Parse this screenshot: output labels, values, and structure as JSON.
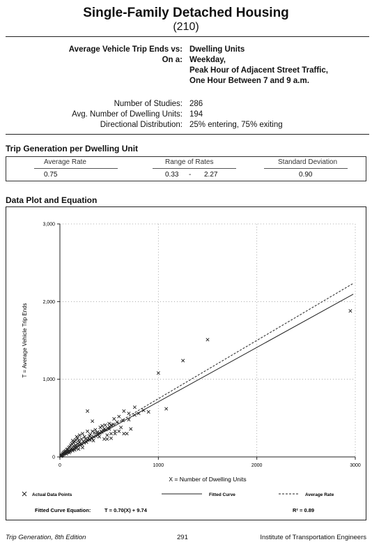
{
  "header": {
    "title": "Single-Family Detached Housing",
    "code": "(210)"
  },
  "summary": {
    "vs_label": "Average Vehicle Trip Ends vs:",
    "vs_value": "Dwelling Units",
    "on_label": "On a:",
    "on_lines": [
      "Weekday,",
      "Peak Hour of Adjacent Street Traffic,",
      "One Hour Between 7 and 9 a.m."
    ],
    "studies_label": "Number of Studies:",
    "studies_value": "286",
    "avg_units_label": "Avg. Number of Dwelling Units:",
    "avg_units_value": "194",
    "dist_label": "Directional Distribution:",
    "dist_value": "25% entering, 75% exiting"
  },
  "trip_generation": {
    "section_title": "Trip Generation per Dwelling Unit",
    "headers": [
      "Average Rate",
      "Range of Rates",
      "Standard Deviation"
    ],
    "average_rate": "0.75",
    "range_low": "0.33",
    "range_sep": "-",
    "range_high": "2.27",
    "std_dev": "0.90"
  },
  "plot_section_title": "Data Plot and Equation",
  "chart_data": {
    "type": "scatter",
    "xlabel": "X = Number of Dwelling Units",
    "ylabel": "T = Average Vehicle Trip Ends",
    "xlim": [
      0,
      3000
    ],
    "ylim": [
      0,
      3000
    ],
    "x_ticks": [
      0,
      1000,
      2000,
      3000
    ],
    "x_tick_labels": [
      "0",
      "1000",
      "2000",
      "3000"
    ],
    "y_ticks": [
      0,
      1000,
      2000,
      3000
    ],
    "y_tick_labels": [
      "0",
      "1,000",
      "2,000",
      "3,000"
    ],
    "grid": true,
    "grid_style": "dotted",
    "series": [
      {
        "name": "Actual Data Points",
        "marker": "x",
        "points": [
          [
            2950,
            1880
          ],
          [
            1500,
            1510
          ],
          [
            1250,
            1240
          ],
          [
            1000,
            1080
          ],
          [
            1080,
            620
          ],
          [
            760,
            640
          ],
          [
            700,
            560
          ],
          [
            650,
            590
          ],
          [
            800,
            560
          ],
          [
            850,
            600
          ],
          [
            600,
            520
          ],
          [
            550,
            490
          ],
          [
            500,
            430
          ],
          [
            450,
            360
          ],
          [
            420,
            330
          ],
          [
            380,
            290
          ],
          [
            350,
            310
          ],
          [
            300,
            270
          ],
          [
            280,
            330
          ],
          [
            250,
            260
          ],
          [
            220,
            230
          ],
          [
            200,
            190
          ],
          [
            180,
            170
          ],
          [
            160,
            150
          ],
          [
            150,
            120
          ],
          [
            140,
            140
          ],
          [
            120,
            110
          ],
          [
            110,
            90
          ],
          [
            100,
            80
          ],
          [
            90,
            75
          ],
          [
            80,
            70
          ],
          [
            70,
            60
          ],
          [
            60,
            50
          ],
          [
            50,
            45
          ],
          [
            40,
            35
          ],
          [
            30,
            28
          ],
          [
            25,
            20
          ],
          [
            20,
            15
          ],
          [
            15,
            12
          ],
          [
            10,
            9
          ],
          [
            130,
            210
          ],
          [
            170,
            260
          ],
          [
            200,
            280
          ],
          [
            230,
            300
          ],
          [
            260,
            230
          ],
          [
            300,
            220
          ],
          [
            320,
            250
          ],
          [
            340,
            210
          ],
          [
            400,
            260
          ],
          [
            450,
            230
          ],
          [
            480,
            280
          ],
          [
            520,
            300
          ],
          [
            560,
            330
          ],
          [
            620,
            380
          ],
          [
            680,
            300
          ],
          [
            720,
            360
          ],
          [
            110,
            150
          ],
          [
            90,
            120
          ],
          [
            70,
            95
          ],
          [
            60,
            80
          ],
          [
            45,
            65
          ],
          [
            35,
            55
          ],
          [
            150,
            200
          ],
          [
            190,
            210
          ],
          [
            210,
            170
          ],
          [
            240,
            200
          ],
          [
            270,
            190
          ],
          [
            290,
            240
          ],
          [
            310,
            290
          ],
          [
            330,
            330
          ],
          [
            360,
            350
          ],
          [
            380,
            320
          ],
          [
            410,
            380
          ],
          [
            430,
            400
          ],
          [
            460,
            410
          ],
          [
            500,
            360
          ],
          [
            540,
            420
          ],
          [
            580,
            450
          ],
          [
            640,
            470
          ],
          [
            700,
            480
          ],
          [
            120,
            170
          ],
          [
            140,
            180
          ],
          [
            160,
            220
          ],
          [
            180,
            240
          ],
          [
            100,
            130
          ],
          [
            80,
            100
          ],
          [
            55,
            70
          ],
          [
            40,
            50
          ],
          [
            28,
            40
          ],
          [
            18,
            25
          ],
          [
            280,
            590
          ],
          [
            330,
            460
          ],
          [
            480,
            230
          ],
          [
            230,
            120
          ],
          [
            190,
            100
          ],
          [
            760,
            540
          ],
          [
            900,
            580
          ],
          [
            650,
            300
          ],
          [
            600,
            330
          ],
          [
            560,
            300
          ],
          [
            520,
            240
          ],
          [
            150,
            90
          ],
          [
            130,
            80
          ],
          [
            170,
            130
          ],
          [
            95,
            55
          ],
          [
            65,
            40
          ],
          [
            75,
            58
          ],
          [
            85,
            62
          ],
          [
            105,
            70
          ],
          [
            125,
            95
          ],
          [
            145,
            105
          ],
          [
            165,
            110
          ],
          [
            185,
            140
          ],
          [
            205,
            150
          ],
          [
            225,
            160
          ],
          [
            245,
            180
          ],
          [
            265,
            200
          ],
          [
            285,
            215
          ],
          [
            305,
            225
          ],
          [
            325,
            240
          ],
          [
            345,
            260
          ],
          [
            365,
            270
          ],
          [
            385,
            300
          ],
          [
            405,
            310
          ],
          [
            425,
            320
          ],
          [
            445,
            340
          ],
          [
            465,
            350
          ],
          [
            485,
            370
          ],
          [
            505,
            390
          ],
          [
            525,
            410
          ]
        ]
      },
      {
        "name": "Fitted Curve",
        "style": "solid",
        "slope": 0.7,
        "intercept": 9.74
      },
      {
        "name": "Average Rate",
        "style": "dashed",
        "slope": 0.75,
        "intercept": 0
      }
    ],
    "equation_label": "Fitted Curve Equation:",
    "equation": "T = 0.70(X) + 9.74",
    "r_squared": "R² = 0.89"
  },
  "footer": {
    "left": "Trip Generation, 8th Edition",
    "center": "291",
    "right": "Institute of Transportation Engineers"
  }
}
